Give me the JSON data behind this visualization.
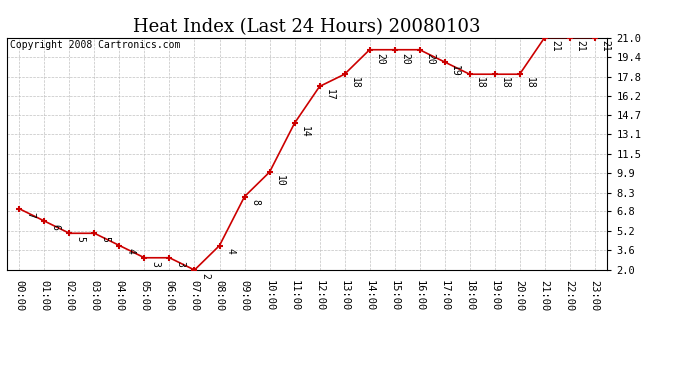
{
  "title": "Heat Index (Last 24 Hours) 20080103",
  "copyright": "Copyright 2008 Cartronics.com",
  "x_labels": [
    "00:00",
    "01:00",
    "02:00",
    "03:00",
    "04:00",
    "05:00",
    "06:00",
    "07:00",
    "08:00",
    "09:00",
    "10:00",
    "11:00",
    "12:00",
    "13:00",
    "14:00",
    "15:00",
    "16:00",
    "17:00",
    "18:00",
    "19:00",
    "20:00",
    "21:00",
    "22:00",
    "23:00"
  ],
  "y_values": [
    7,
    6,
    5,
    5,
    4,
    3,
    3,
    2,
    4,
    8,
    10,
    14,
    17,
    18,
    20,
    20,
    20,
    19,
    18,
    18,
    18,
    21,
    21,
    21
  ],
  "y_ticks": [
    2.0,
    3.6,
    5.2,
    6.8,
    8.3,
    9.9,
    11.5,
    13.1,
    14.7,
    16.2,
    17.8,
    19.4,
    21.0
  ],
  "ylim": [
    2.0,
    21.0
  ],
  "line_color": "#cc0000",
  "marker_color": "#cc0000",
  "bg_color": "#ffffff",
  "grid_color": "#bbbbbb",
  "title_fontsize": 13,
  "copyright_fontsize": 7,
  "label_fontsize": 7.5,
  "annotation_fontsize": 7
}
